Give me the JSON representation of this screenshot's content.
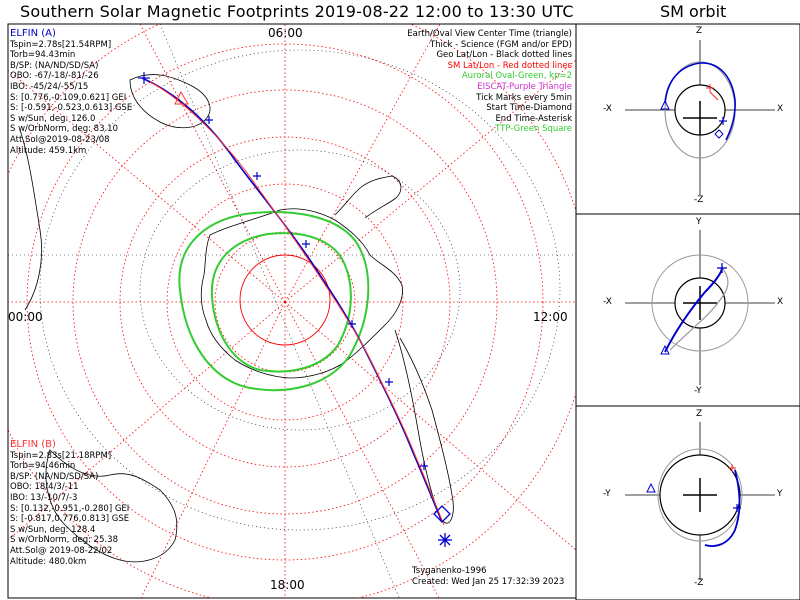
{
  "title": "Southern Solar Magnetic Footprints 2019-08-22 12:00 to 13:30 UTC",
  "orbit_title": "SM orbit",
  "time_labels": {
    "top": "06:00",
    "left": "00:00",
    "right": "12:00",
    "bottom": "18:00"
  },
  "elfin_a": {
    "name": "ELFIN (A)",
    "color": "#0000cc",
    "lines": [
      "Tspin=2.78s[21.54RPM]",
      "Torb=94.43min",
      "B/SP: (NA/ND/SD/SA)",
      "OBO: -67/-18/-81/-26",
      "IBO: -45/24/-55/15",
      "S: [0.776,-0.109,0.621] GEI",
      "S: [-0.591,-0.523,0.613] GSE",
      "S w/Sun, deg: 126.0",
      "S w/OrbNorm, deg: 83.10",
      "Att.Sol@2019-08-23/08",
      "Altitude: 459.1km"
    ]
  },
  "elfin_b": {
    "name": "ELFIN (B)",
    "color": "#ff3333",
    "lines": [
      "Tspin=2.83s[21.18RPM]",
      "Torb=94.46min",
      "B/SP: (NA/ND/SD/SA)",
      "OBO: 18/4/3/-11",
      "IBO: 13/-10/7/-3",
      "S: [0.132,-0.951,-0.280] GEI",
      "S: [-0.817,0.776,0.813] GSE",
      "S w/Sun, deg: 128.4",
      "S w/OrbNorm, deg: 25.38",
      "Att.Sol@ 2019-08-22/02",
      "Altitude: 480.0km"
    ]
  },
  "legend": [
    {
      "text": "Earth/Oval View Center Time (triangle)",
      "color": "#000000"
    },
    {
      "text": "Thick - Science (FGM and/or EPD)",
      "color": "#000000"
    },
    {
      "text": "Geo Lat/Lon - Black dotted lines",
      "color": "#000000"
    },
    {
      "text": "SM Lat/Lon - Red dotted lines",
      "color": "#ff0000"
    },
    {
      "text": "Auroral Oval-Green, kp=2",
      "color": "#33cc33"
    },
    {
      "text": "EISCAT-Purple Triangle",
      "color": "#cc33cc"
    },
    {
      "text": "Tick Marks every 5min",
      "color": "#000000"
    },
    {
      "text": "Start Time-Diamond",
      "color": "#000000"
    },
    {
      "text": "End Time-Asterisk",
      "color": "#000000"
    },
    {
      "text": "TTP-Green Square",
      "color": "#33cc33"
    }
  ],
  "credits": {
    "model": "Tsyganenko-1996",
    "created": "Created: Wed Jan 25 17:32:39 2023"
  },
  "orbit_panels": [
    {
      "top": "Z",
      "bottom": "-Z",
      "left": "-X",
      "right": "X"
    },
    {
      "top": "Y",
      "bottom": "-Y",
      "left": "-X",
      "right": "X"
    },
    {
      "top": "Z",
      "bottom": "-Z",
      "left": "-Y",
      "right": "Y"
    }
  ],
  "colors": {
    "elfin_a": "#0000cc",
    "elfin_b": "#ff3333",
    "sm_grid": "#ff0000",
    "geo_grid": "#000000",
    "auroral_oval": "#33cc33",
    "orbit_gray": "#999999"
  }
}
